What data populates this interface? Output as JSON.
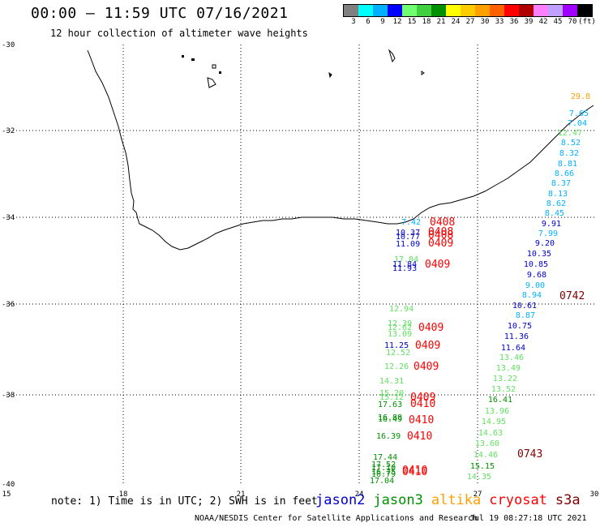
{
  "header": {
    "title": "00:00 – 11:59 UTC 07/16/2021",
    "subtitle": "12 hour collection of altimeter wave heights"
  },
  "color_scale": {
    "labels": [
      "3",
      "6",
      "9",
      "12",
      "15",
      "18",
      "21",
      "24",
      "27",
      "30",
      "33",
      "36",
      "39",
      "42",
      "45",
      "70",
      "(ft)"
    ],
    "colors": [
      "#808080",
      "#00ffff",
      "#00b0ff",
      "#0000ff",
      "#70ff70",
      "#40d040",
      "#009000",
      "#ffff00",
      "#ffcc00",
      "#ffa000",
      "#ff6000",
      "#ff0000",
      "#b00000",
      "#ff80ff",
      "#c0a0ff",
      "#a000ff",
      "#000000"
    ]
  },
  "axes": {
    "lat_labels": [
      "-30",
      "-32",
      "-34",
      "-36",
      "-38",
      "-40"
    ],
    "lon_labels": [
      "15",
      "18",
      "21",
      "24",
      "27",
      "30"
    ]
  },
  "satellite_colors": {
    "jason2": "#0000cc",
    "jason3": "#009000",
    "altika": "#ffa000",
    "cryosat": "#ff0000",
    "s3a": "#800000",
    "swh_cyan": "#00b0ff",
    "swh_lightgreen": "#60e060"
  },
  "track_east_values": [
    {
      "v": "29.8",
      "c": "altika"
    },
    {
      "v": "7.65",
      "c": "swh_cyan"
    },
    {
      "v": "7.04",
      "c": "swh_cyan"
    },
    {
      "v": "12.47",
      "c": "swh_lightgreen"
    },
    {
      "v": "8.52",
      "c": "swh_cyan"
    },
    {
      "v": "8.32",
      "c": "swh_cyan"
    },
    {
      "v": "8.81",
      "c": "swh_cyan"
    },
    {
      "v": "8.66",
      "c": "swh_cyan"
    },
    {
      "v": "8.37",
      "c": "swh_cyan"
    },
    {
      "v": "8.13",
      "c": "swh_cyan"
    },
    {
      "v": "8.62",
      "c": "swh_cyan"
    },
    {
      "v": "8.45",
      "c": "swh_cyan"
    },
    {
      "v": "9.91",
      "c": "jason2"
    },
    {
      "v": "7.99",
      "c": "swh_cyan"
    },
    {
      "v": "9.20",
      "c": "jason2"
    },
    {
      "v": "10.35",
      "c": "jason2"
    },
    {
      "v": "10.85",
      "c": "jason2"
    },
    {
      "v": "9.68",
      "c": "jason2"
    },
    {
      "v": "9.00",
      "c": "swh_cyan"
    },
    {
      "v": "8.94",
      "c": "swh_cyan"
    },
    {
      "v": "10.61",
      "c": "jason2"
    },
    {
      "v": "8.87",
      "c": "swh_cyan"
    },
    {
      "v": "10.75",
      "c": "jason2"
    },
    {
      "v": "11.36",
      "c": "jason2"
    },
    {
      "v": "11.64",
      "c": "jason2"
    },
    {
      "v": "13.46",
      "c": "swh_lightgreen"
    },
    {
      "v": "13.49",
      "c": "swh_lightgreen"
    },
    {
      "v": "13.22",
      "c": "swh_lightgreen"
    },
    {
      "v": "13.52",
      "c": "swh_lightgreen"
    },
    {
      "v": "16.41",
      "c": "jason3"
    },
    {
      "v": "13.96",
      "c": "swh_lightgreen"
    },
    {
      "v": "14.95",
      "c": "swh_lightgreen"
    },
    {
      "v": "14.63",
      "c": "swh_lightgreen"
    },
    {
      "v": "13.60",
      "c": "swh_lightgreen"
    },
    {
      "v": "14.46",
      "c": "swh_lightgreen"
    },
    {
      "v": "15.15",
      "c": "jason3"
    },
    {
      "v": "14.35",
      "c": "swh_lightgreen"
    }
  ],
  "track_west_values": [
    {
      "v": "7.42",
      "c": "swh_cyan"
    },
    {
      "v": "10.37",
      "c": "jason2"
    },
    {
      "v": "10.77",
      "c": "jason2"
    },
    {
      "v": "11.09",
      "c": "jason2"
    },
    {
      "v": "17.04",
      "c": "swh_lightgreen"
    },
    {
      "v": "11.84",
      "c": "jason2"
    },
    {
      "v": "11.93",
      "c": "jason2"
    },
    {
      "v": "12.94",
      "c": "swh_lightgreen"
    },
    {
      "v": "12.39",
      "c": "swh_lightgreen"
    },
    {
      "v": "12.62",
      "c": "swh_lightgreen"
    },
    {
      "v": "13.09",
      "c": "swh_lightgreen"
    },
    {
      "v": "11.25",
      "c": "jason2"
    },
    {
      "v": "12.52",
      "c": "swh_lightgreen"
    },
    {
      "v": "12.26",
      "c": "swh_lightgreen"
    },
    {
      "v": "14.31",
      "c": "swh_lightgreen"
    },
    {
      "v": "15.20",
      "c": "swh_lightgreen"
    },
    {
      "v": "15.12",
      "c": "swh_lightgreen"
    },
    {
      "v": "17.63",
      "c": "jason3"
    },
    {
      "v": "16.88",
      "c": "jason3"
    },
    {
      "v": "16.49",
      "c": "jason3"
    },
    {
      "v": "16.39",
      "c": "jason3"
    },
    {
      "v": "17.44",
      "c": "jason3"
    },
    {
      "v": "17.52",
      "c": "jason3"
    },
    {
      "v": "17.10",
      "c": "jason3"
    },
    {
      "v": "16.75",
      "c": "jason3"
    },
    {
      "v": "16.79",
      "c": "jason3"
    },
    {
      "v": "17.04",
      "c": "jason3"
    }
  ],
  "time_labels": [
    {
      "v": "0408",
      "c": "cryosat"
    },
    {
      "v": "0408",
      "c": "cryosat"
    },
    {
      "v": "0408",
      "c": "cryosat"
    },
    {
      "v": "0409",
      "c": "cryosat"
    },
    {
      "v": "0409",
      "c": "cryosat"
    },
    {
      "v": "0409",
      "c": "cryosat"
    },
    {
      "v": "0409",
      "c": "cryosat"
    },
    {
      "v": "0409",
      "c": "cryosat"
    },
    {
      "v": "0409",
      "c": "cryosat"
    },
    {
      "v": "0410",
      "c": "cryosat"
    },
    {
      "v": "0410",
      "c": "cryosat"
    },
    {
      "v": "0410",
      "c": "cryosat"
    },
    {
      "v": "0410",
      "c": "cryosat"
    },
    {
      "v": "0410",
      "c": "cryosat"
    },
    {
      "v": "0742",
      "c": "s3a"
    },
    {
      "v": "0743",
      "c": "s3a"
    }
  ],
  "footer": {
    "note": "note: 1) Time is in UTC; 2) SWH is in feet",
    "legend": [
      "jason2",
      "jason3",
      "altika",
      "cryosat",
      "s3a"
    ],
    "credit": "NOAA/NESDIS Center for Satellite Applications and Research",
    "timestamp": "Jul 19 08:27:18 UTC 2021"
  }
}
